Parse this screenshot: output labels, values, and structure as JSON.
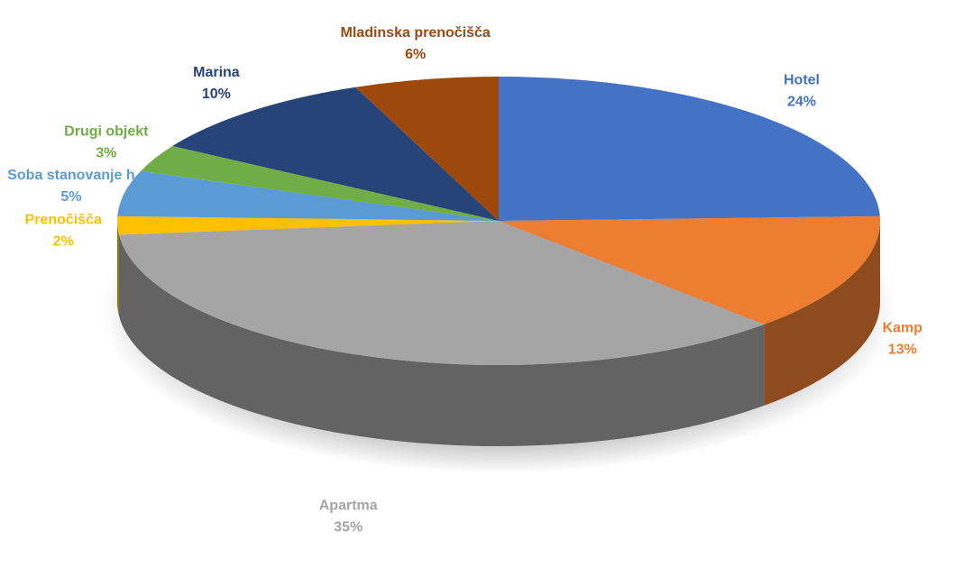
{
  "chart_data": {
    "type": "pie",
    "categories": [
      "Hotel",
      "Kamp",
      "Apartma",
      "Prenočišča",
      "Soba stanovanje h",
      "Drugi objekt",
      "Marina",
      "Mladinska prenočišča"
    ],
    "values": [
      24,
      13,
      35,
      2,
      5,
      3,
      10,
      6
    ],
    "value_labels": [
      "24%",
      "13%",
      "35%",
      "2%",
      "5%",
      "3%",
      "10%",
      "6%"
    ],
    "colors": [
      "#4472c4",
      "#ed7d31",
      "#a5a5a5",
      "#ffc000",
      "#5b9bd5",
      "#70ad47",
      "#264478",
      "#9e480e"
    ]
  }
}
